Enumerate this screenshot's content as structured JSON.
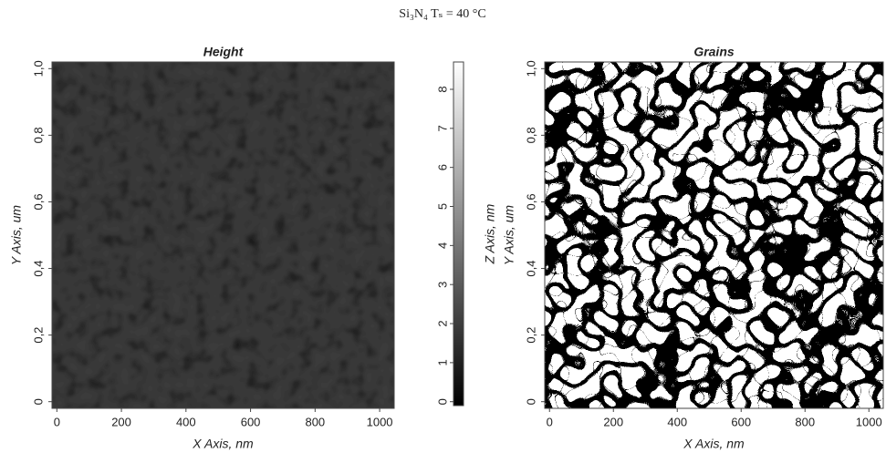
{
  "title": "Si₃N₄ Tₛ = 40 °C",
  "chart_data": [
    {
      "type": "image",
      "title": "Height",
      "x_label": "X Axis, nm",
      "y_label": "Y Axis, um",
      "xlim": [
        -15,
        1045
      ],
      "ylim": [
        -0.02,
        1.02
      ],
      "xticks": [
        0,
        200,
        400,
        600,
        800,
        1000
      ],
      "yticks": [
        0,
        {
          "value": 0.2,
          "label": "0,2"
        },
        {
          "value": 0.4,
          "label": "0,4"
        },
        {
          "value": 0.6,
          "label": "0,6"
        },
        {
          "value": 0.8,
          "label": "0,8"
        },
        {
          "value": 1.0,
          "label": "1,0"
        }
      ],
      "colorbar": {
        "label": "Z Axis, nm",
        "zlim": [
          -0.1,
          8.7
        ],
        "zticks": [
          0,
          1,
          2,
          3,
          4,
          5,
          6,
          7,
          8
        ]
      }
    },
    {
      "type": "image",
      "title": "Grains",
      "x_label": "X Axis, nm",
      "y_label": "Y Axis, um",
      "xlim": [
        -15,
        1045
      ],
      "ylim": [
        -0.02,
        1.02
      ],
      "xticks": [
        0,
        200,
        400,
        600,
        800,
        1000
      ],
      "yticks": [
        0,
        {
          "value": 0.2,
          "label": "0,2"
        },
        {
          "value": 0.4,
          "label": "0,4"
        },
        {
          "value": 0.6,
          "label": "0,6"
        },
        {
          "value": 0.8,
          "label": "0,8"
        },
        {
          "value": 1.0,
          "label": "1,0"
        }
      ]
    }
  ]
}
